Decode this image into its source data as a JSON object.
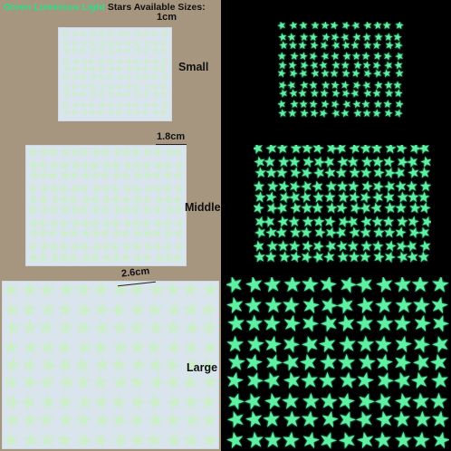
{
  "header": {
    "title_green": "Green Luminous Light",
    "title_rest": "Stars Available Sizes:"
  },
  "sizes": [
    {
      "label": "Small",
      "measurement": "1cm"
    },
    {
      "label": "Middle",
      "measurement": "1.8cm"
    },
    {
      "label": "Large",
      "measurement": "2.6cm"
    }
  ],
  "colors": {
    "glow_star": "#5ef0a3",
    "day_star": "#cdeecb",
    "sheet": "#d9e4ec",
    "background_left": "#a69680",
    "background_right": "#000000"
  },
  "icons": {
    "star": "star-icon"
  }
}
